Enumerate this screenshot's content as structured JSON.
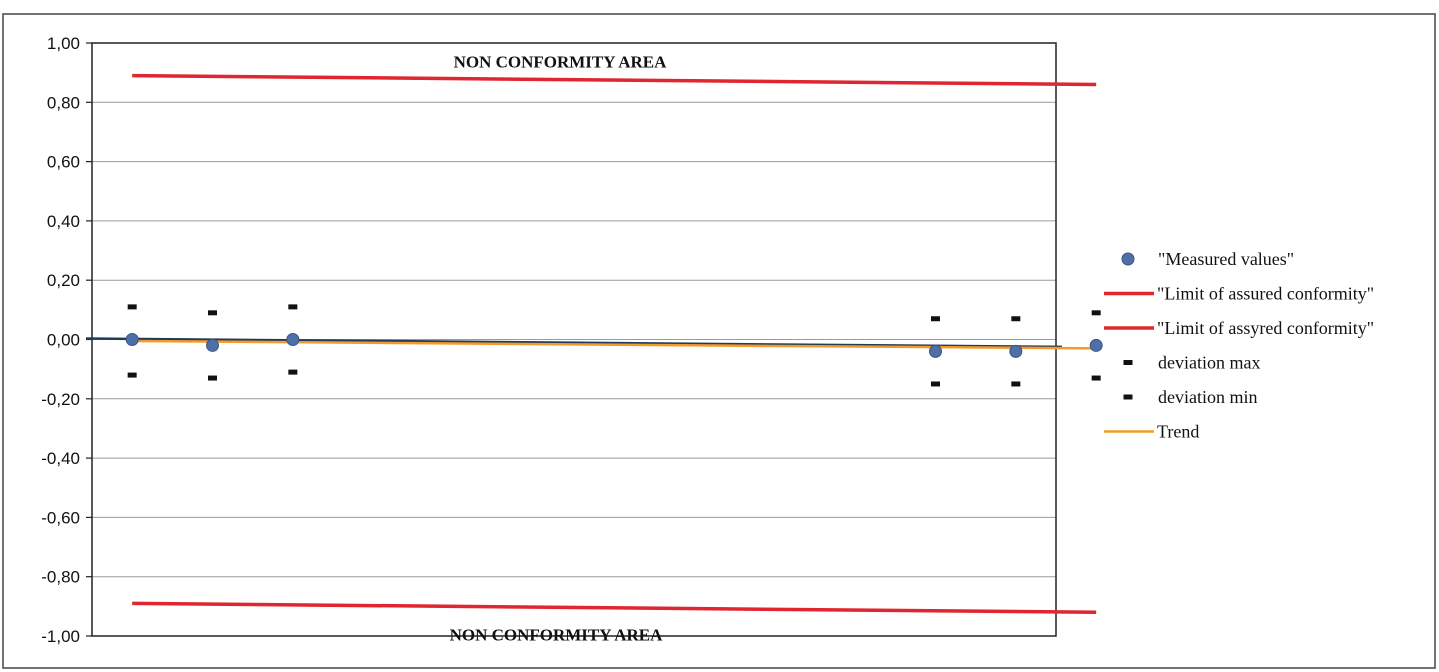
{
  "chart_data": {
    "type": "scatter",
    "title": "",
    "xlabel": "",
    "ylabel": "",
    "ylim": [
      -1.0,
      1.0
    ],
    "xlim": [
      0.5,
      12.5
    ],
    "y_ticks": [
      1.0,
      0.8,
      0.6,
      0.4,
      0.2,
      0.0,
      -0.2,
      -0.4,
      -0.6,
      -0.8,
      -1.0
    ],
    "y_tick_labels": [
      "1,00",
      "0,80",
      "0,60",
      "0,40",
      "0,20",
      "0,00",
      "-0,20",
      "-0,40",
      "-0,60",
      "-0,80",
      "-1,00"
    ],
    "grid": true,
    "legend_position": "right",
    "annotations": {
      "upper_area": "NON CONFORMITY AREA",
      "lower_area": "NON CONFORMITY AREA"
    },
    "series": [
      {
        "name": "\"Measured values\"",
        "kind": "points",
        "color": "#4f6fa8",
        "x": [
          1,
          2,
          3,
          11,
          12,
          13
        ],
        "y": [
          0.0,
          -0.02,
          0.0,
          -0.04,
          -0.04,
          -0.02
        ]
      },
      {
        "name": "\"Limit of assured conformity\"",
        "kind": "line",
        "color": "#e0262f",
        "x": [
          1,
          13
        ],
        "y": [
          0.89,
          0.86
        ]
      },
      {
        "name": "\"Limit of assyred conformity\"",
        "kind": "line",
        "color": "#e0262f",
        "x": [
          1,
          13
        ],
        "y": [
          -0.89,
          -0.92
        ]
      },
      {
        "name": "deviation max",
        "kind": "marker",
        "color": "#111111",
        "x": [
          1,
          2,
          3,
          11,
          12,
          13
        ],
        "y": [
          0.11,
          0.09,
          0.11,
          0.07,
          0.07,
          0.09
        ]
      },
      {
        "name": "deviation min",
        "kind": "marker",
        "color": "#111111",
        "x": [
          1,
          2,
          3,
          11,
          12,
          13
        ],
        "y": [
          -0.12,
          -0.13,
          -0.11,
          -0.15,
          -0.15,
          -0.13
        ]
      },
      {
        "name": "Trend",
        "kind": "line",
        "color": "#f59a2a",
        "x": [
          1,
          13
        ],
        "y": [
          -0.005,
          -0.03
        ]
      }
    ]
  }
}
